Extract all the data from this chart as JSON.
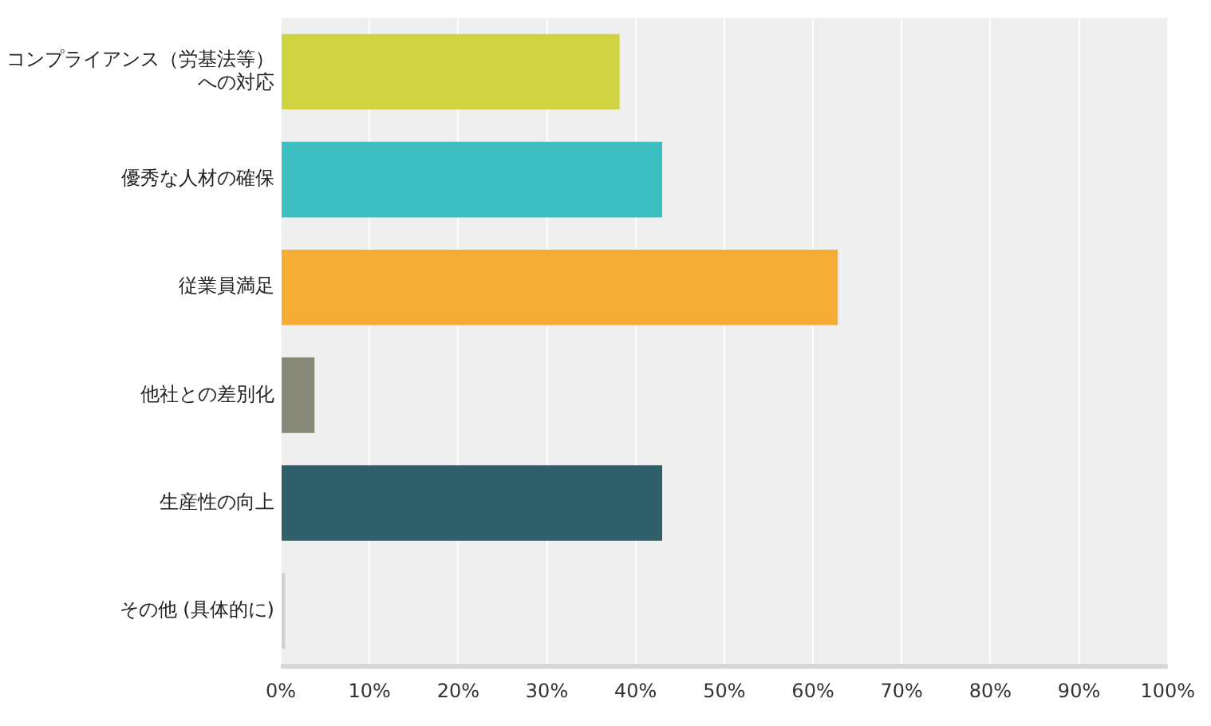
{
  "chart_data": {
    "type": "bar",
    "orientation": "horizontal",
    "categories": [
      "コンプライアンス（労基法等）への対応",
      "優秀な人材の確保",
      "従業員満足",
      "他社との差別化",
      "生産性の向上",
      "その他 (具体的に)"
    ],
    "values": [
      38.2,
      43.0,
      62.8,
      3.8,
      43.0,
      0.5
    ],
    "colors": [
      "#d0d341",
      "#3dbfc1",
      "#f5ad36",
      "#878878",
      "#2f5f6b",
      "#d0d0d0"
    ],
    "xlim": [
      0,
      100
    ],
    "xticks": [
      {
        "value": 0,
        "label": "0%"
      },
      {
        "value": 10,
        "label": "10%"
      },
      {
        "value": 20,
        "label": "20%"
      },
      {
        "value": 30,
        "label": "30%"
      },
      {
        "value": 40,
        "label": "40%"
      },
      {
        "value": 50,
        "label": "50%"
      },
      {
        "value": 60,
        "label": "60%"
      },
      {
        "value": 70,
        "label": "70%"
      },
      {
        "value": 80,
        "label": "80%"
      },
      {
        "value": 90,
        "label": "90%"
      },
      {
        "value": 100,
        "label": "100%"
      }
    ],
    "grid": "x",
    "legend": false
  }
}
